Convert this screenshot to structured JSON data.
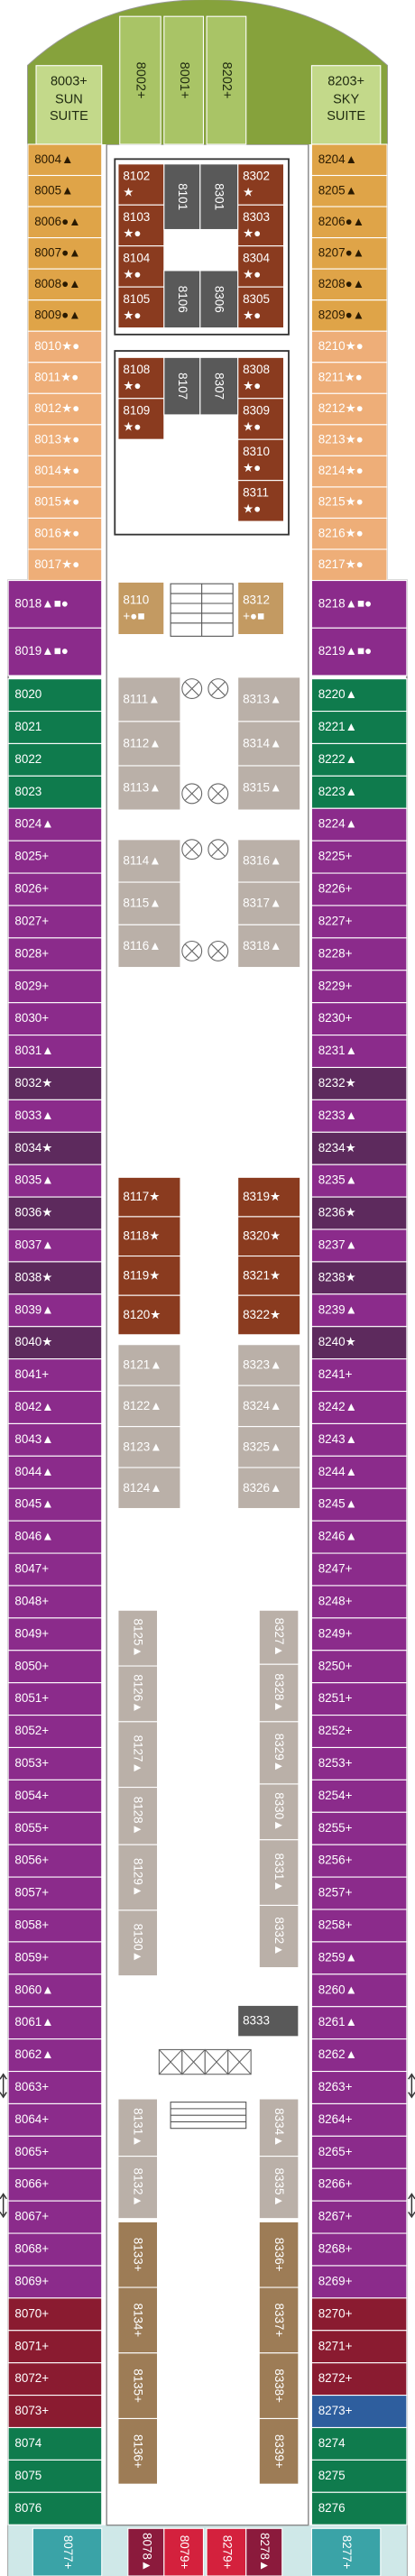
{
  "bow_color": "#86a23c",
  "bow": [
    {
      "number": "8003+",
      "name_lines": [
        "SUN",
        "SUITE"
      ],
      "color": "#c3d98a"
    },
    {
      "number": "8002+",
      "color": "#a9c466"
    },
    {
      "number": "8001+",
      "color": "#a9c466"
    },
    {
      "number": "8202+",
      "color": "#a9c466"
    },
    {
      "number": "8203+",
      "name_lines": [
        "SKY",
        "SUITE"
      ],
      "color": "#c3d98a"
    }
  ],
  "port": [
    {
      "color": "#dfa448",
      "text_color": "#2a1a00",
      "cabins": [
        "8004▲",
        "8005▲",
        "8006●▲",
        "8007●▲",
        "8008●▲",
        "8009●▲"
      ]
    },
    {
      "color": "#eeae78",
      "cabins": [
        "8010★●",
        "8011★●",
        "8012★●",
        "8013★●",
        "8014★●",
        "8015★●",
        "8016★●",
        "8017★●"
      ]
    },
    {
      "color": "#8b2b8b",
      "cabins": [
        "8018▲■●",
        "8019▲■●"
      ]
    },
    {
      "color": "#0f7b4d",
      "cabins": [
        "8020",
        "8021",
        "8022",
        "8023"
      ]
    },
    {
      "color": "#8b2b8b",
      "cabins": [
        "8024▲",
        "8025+",
        "8026+",
        "8027+",
        "8028+",
        "8029+",
        "8030+",
        "8031▲"
      ]
    },
    {
      "color": "#5d2a5d",
      "cabins": [
        "8032★"
      ]
    },
    {
      "color": "#8b2b8b",
      "cabins": [
        "8033▲"
      ]
    },
    {
      "color": "#5d2a5d",
      "cabins": [
        "8034★"
      ]
    },
    {
      "color": "#8b2b8b",
      "cabins": [
        "8035▲"
      ]
    },
    {
      "color": "#5d2a5d",
      "cabins": [
        "8036★"
      ]
    },
    {
      "color": "#8b2b8b",
      "cabins": [
        "8037▲"
      ]
    },
    {
      "color": "#5d2a5d",
      "cabins": [
        "8038★"
      ]
    },
    {
      "color": "#8b2b8b",
      "cabins": [
        "8039▲"
      ]
    },
    {
      "color": "#5d2a5d",
      "cabins": [
        "8040★"
      ]
    },
    {
      "color": "#8b2b8b",
      "cabins": [
        "8041+",
        "8042▲",
        "8043▲",
        "8044▲",
        "8045▲",
        "8046▲",
        "8047+",
        "8048+",
        "8049+",
        "8050+",
        "8051+",
        "8052+",
        "8053+",
        "8054+",
        "8055+",
        "8056+",
        "8057+",
        "8058+",
        "8059+",
        "8060▲",
        "8061▲",
        "8062▲",
        "8063+",
        "8064+",
        "8065+",
        "8066+",
        "8067+",
        "8068+",
        "8069+"
      ]
    },
    {
      "color": "#8a1b30",
      "cabins": [
        "8070+",
        "8071+",
        "8072+",
        "8073+"
      ]
    },
    {
      "color": "#0f7b4d",
      "cabins": [
        "8074",
        "8075",
        "8076"
      ]
    }
  ],
  "starboard": [
    {
      "color": "#dfa448",
      "text_color": "#2a1a00",
      "cabins": [
        "8204▲",
        "8205▲",
        "8206●▲",
        "8207●▲",
        "8208●▲",
        "8209●▲"
      ]
    },
    {
      "color": "#eeae78",
      "cabins": [
        "8210★●",
        "8211★●",
        "8212★●",
        "8213★●",
        "8214★●",
        "8215★●",
        "8216★●",
        "8217★●"
      ]
    },
    {
      "color": "#8b2b8b",
      "cabins": [
        "8218▲■●",
        "8219▲■●"
      ]
    },
    {
      "color": "#0f7b4d",
      "cabins": [
        "8220▲",
        "8221▲",
        "8222▲",
        "8223▲"
      ]
    },
    {
      "color": "#8b2b8b",
      "cabins": [
        "8224▲",
        "8225+",
        "8226+",
        "8227+",
        "8228+",
        "8229+",
        "8230+",
        "8231▲"
      ]
    },
    {
      "color": "#5d2a5d",
      "cabins": [
        "8232★"
      ]
    },
    {
      "color": "#8b2b8b",
      "cabins": [
        "8233▲"
      ]
    },
    {
      "color": "#5d2a5d",
      "cabins": [
        "8234★"
      ]
    },
    {
      "color": "#8b2b8b",
      "cabins": [
        "8235▲"
      ]
    },
    {
      "color": "#5d2a5d",
      "cabins": [
        "8236★"
      ]
    },
    {
      "color": "#8b2b8b",
      "cabins": [
        "8237▲"
      ]
    },
    {
      "color": "#5d2a5d",
      "cabins": [
        "8238★"
      ]
    },
    {
      "color": "#8b2b8b",
      "cabins": [
        "8239▲"
      ]
    },
    {
      "color": "#5d2a5d",
      "cabins": [
        "8240★"
      ]
    },
    {
      "color": "#8b2b8b",
      "cabins": [
        "8241+",
        "8242▲",
        "8243▲",
        "8244▲",
        "8245▲",
        "8246▲",
        "8247+",
        "8248+",
        "8249+",
        "8250+",
        "8251+",
        "8252+",
        "8253+",
        "8254+",
        "8255+",
        "8256+",
        "8257+",
        "8258+",
        "8259▲",
        "8260▲",
        "8261▲",
        "8262▲",
        "8263+",
        "8264+",
        "8265+",
        "8266+",
        "8267+",
        "8268+",
        "8269+"
      ]
    },
    {
      "color": "#8a1b30",
      "cabins": [
        "8270+",
        "8271+",
        "8272+"
      ]
    },
    {
      "color": "#2e5e9e",
      "cabins": [
        "8273+"
      ]
    },
    {
      "color": "#0f7b4d",
      "cabins": [
        "8274",
        "8275",
        "8276"
      ]
    }
  ],
  "inner": [
    {
      "color": "#8a3b1f",
      "cabins": [
        {
          "number": "8102",
          "symbols": "★"
        },
        {
          "number": "8103",
          "symbols": "★●"
        },
        {
          "number": "8104",
          "symbols": "★●"
        },
        {
          "number": "8105",
          "symbols": "★●"
        },
        {
          "number": "8302",
          "symbols": "★"
        },
        {
          "number": "8303",
          "symbols": "★●"
        },
        {
          "number": "8304",
          "symbols": "★●"
        },
        {
          "number": "8305",
          "symbols": "★●"
        },
        {
          "number": "8108",
          "symbols": "★●"
        },
        {
          "number": "8109",
          "symbols": "★●"
        },
        {
          "number": "8308",
          "symbols": "★●"
        },
        {
          "number": "8309",
          "symbols": "★●"
        },
        {
          "number": "8310",
          "symbols": "★●"
        },
        {
          "number": "8311",
          "symbols": "★●"
        }
      ]
    },
    {
      "color": "#595959",
      "cabins": [
        {
          "number": "8101"
        },
        {
          "number": "8301"
        },
        {
          "number": "8106"
        },
        {
          "number": "8306"
        },
        {
          "number": "8107"
        },
        {
          "number": "8307"
        },
        {
          "number": "8333"
        }
      ]
    },
    {
      "color": "#c39a62",
      "cabins": [
        {
          "number": "8110",
          "symbols": "+●■"
        },
        {
          "number": "8312",
          "symbols": "+●■"
        }
      ]
    },
    {
      "color": "#bab0a8",
      "cabins": [
        {
          "number": "8111",
          "symbols": "▲"
        },
        {
          "number": "8112",
          "symbols": "▲"
        },
        {
          "number": "8113",
          "symbols": "▲"
        },
        {
          "number": "8313",
          "symbols": "▲"
        },
        {
          "number": "8314",
          "symbols": "▲"
        },
        {
          "number": "8315",
          "symbols": "▲"
        },
        {
          "number": "8114",
          "symbols": "▲"
        },
        {
          "number": "8115",
          "symbols": "▲"
        },
        {
          "number": "8116",
          "symbols": "▲"
        },
        {
          "number": "8316",
          "symbols": "▲"
        },
        {
          "number": "8317",
          "symbols": "▲"
        },
        {
          "number": "8318",
          "symbols": "▲"
        },
        {
          "number": "8121",
          "symbols": "▲"
        },
        {
          "number": "8122",
          "symbols": "▲"
        },
        {
          "number": "8123",
          "symbols": "▲"
        },
        {
          "number": "8124",
          "symbols": "▲"
        },
        {
          "number": "8323",
          "symbols": "▲"
        },
        {
          "number": "8324",
          "symbols": "▲"
        },
        {
          "number": "8325",
          "symbols": "▲"
        },
        {
          "number": "8326",
          "symbols": "▲"
        }
      ]
    },
    {
      "color": "#8a3b1f",
      "cabins": [
        {
          "number": "8117",
          "symbols": "★"
        },
        {
          "number": "8118",
          "symbols": "★"
        },
        {
          "number": "8119",
          "symbols": "★"
        },
        {
          "number": "8120",
          "symbols": "★"
        },
        {
          "number": "8319",
          "symbols": "★"
        },
        {
          "number": "8320",
          "symbols": "★"
        },
        {
          "number": "8321",
          "symbols": "★"
        },
        {
          "number": "8322",
          "symbols": "★"
        }
      ]
    },
    {
      "color": "#bab0a8",
      "cabins": [
        {
          "number": "8125",
          "symbols": "▲"
        },
        {
          "number": "8126",
          "symbols": "▲"
        },
        {
          "number": "8127",
          "symbols": "▲"
        },
        {
          "number": "8128",
          "symbols": "▲"
        },
        {
          "number": "8129",
          "symbols": "▲"
        },
        {
          "number": "8130",
          "symbols": "▲"
        },
        {
          "number": "8327",
          "symbols": "▲"
        },
        {
          "number": "8328",
          "symbols": "▲"
        },
        {
          "number": "8329",
          "symbols": "▲"
        },
        {
          "number": "8330",
          "symbols": "▲"
        },
        {
          "number": "8331",
          "symbols": "▲"
        },
        {
          "number": "8332",
          "symbols": "▲"
        },
        {
          "number": "8131",
          "symbols": "▲"
        },
        {
          "number": "8132",
          "symbols": "▲"
        },
        {
          "number": "8334",
          "symbols": "▲"
        },
        {
          "number": "8335",
          "symbols": "▲"
        }
      ]
    },
    {
      "color": "#9d7c56",
      "cabins": [
        {
          "number": "8133",
          "symbols": "+"
        },
        {
          "number": "8134",
          "symbols": "+"
        },
        {
          "number": "8135",
          "symbols": "+"
        },
        {
          "number": "8136",
          "symbols": "+"
        },
        {
          "number": "8336",
          "symbols": "+"
        },
        {
          "number": "8337",
          "symbols": "+"
        },
        {
          "number": "8338",
          "symbols": "+"
        },
        {
          "number": "8339",
          "symbols": "+"
        }
      ]
    }
  ],
  "aft": [
    {
      "number": "8077+",
      "color": "#3aa3a7"
    },
    {
      "number": "8078▲",
      "color": "#8b1a3c"
    },
    {
      "number": "8079+",
      "color": "#d4213d"
    },
    {
      "number": "8279+",
      "color": "#d4213d"
    },
    {
      "number": "8278▲",
      "color": "#8b1a3c"
    },
    {
      "number": "8277+",
      "color": "#3aa3a7"
    }
  ]
}
